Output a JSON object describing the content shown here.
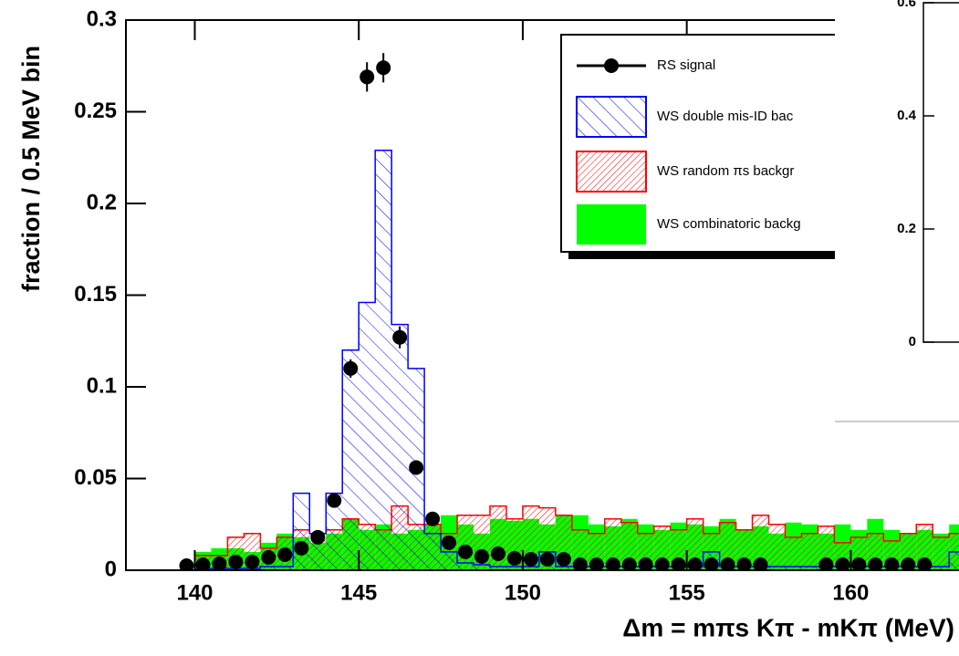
{
  "chart_data": [
    {
      "type": "histogram",
      "x_label": "Δm = mπs Kπ - mKπ (MeV)",
      "y_label": "fraction / 0.5 MeV bin",
      "xlim": [
        137.9,
        163.3
      ],
      "ylim": [
        0,
        0.3
      ],
      "xticks": [
        140,
        145,
        150,
        155,
        160
      ],
      "yticks": [
        0,
        0.05,
        0.1,
        0.15,
        0.2,
        0.25,
        0.3
      ],
      "bins": [
        138,
        138.5,
        139,
        139.5,
        140,
        140.5,
        141,
        141.5,
        142,
        142.5,
        143,
        143.5,
        144,
        144.5,
        145,
        145.5,
        146,
        146.5,
        147,
        147.5,
        148,
        148.5,
        149,
        149.5,
        150,
        150.5,
        151,
        151.5,
        152,
        152.5,
        153,
        153.5,
        154,
        154.5,
        155,
        155.5,
        156,
        156.5,
        157,
        157.5,
        158,
        158.5,
        159,
        159.5,
        160,
        160.5,
        161,
        161.5,
        162,
        162.5,
        163,
        163.5
      ],
      "series": [
        {
          "name": "RS signal",
          "style": "points",
          "color": "#000000",
          "x": [
            139.75,
            140.25,
            140.75,
            141.25,
            141.75,
            142.25,
            142.75,
            143.25,
            143.75,
            144.25,
            144.75,
            145.25,
            145.75,
            146.25,
            146.75,
            147.25,
            147.75,
            148.25,
            148.75,
            149.25,
            149.75,
            150.25,
            150.75,
            151.25,
            151.75,
            152.25,
            152.75,
            153.25,
            153.75,
            154.25,
            154.75,
            155.25,
            155.75,
            156.25,
            156.75,
            157.25,
            159.25,
            159.75,
            160.25,
            160.75,
            161.25,
            161.75,
            162.25
          ],
          "values": [
            0.0025,
            0.003,
            0.0035,
            0.0045,
            0.0045,
            0.007,
            0.0085,
            0.012,
            0.018,
            0.038,
            0.11,
            0.269,
            0.274,
            0.127,
            0.056,
            0.028,
            0.015,
            0.01,
            0.0075,
            0.009,
            0.0065,
            0.006,
            0.006,
            0.006,
            0.003,
            0.003,
            0.003,
            0.003,
            0.003,
            0.003,
            0.003,
            0.003,
            0.003,
            0.003,
            0.003,
            0.003,
            0.003,
            0.003,
            0.003,
            0.003,
            0.003,
            0.003,
            0.003
          ],
          "errors": [
            0.001,
            0.001,
            0.001,
            0.001,
            0.001,
            0.0015,
            0.0015,
            0.002,
            0.002,
            0.003,
            0.005,
            0.008,
            0.008,
            0.006,
            0.004,
            0.002,
            0.002,
            0.0015,
            0.0015,
            0.0015,
            0.001,
            0.001,
            0.001,
            0.001,
            0.001,
            0.001,
            0.001,
            0.001,
            0.001,
            0.001,
            0.001,
            0.001,
            0.001,
            0.001,
            0.001,
            0.001,
            0.001,
            0.001,
            0.001,
            0.001,
            0.001,
            0.001,
            0.001
          ]
        },
        {
          "name": "WS double mis-ID bac",
          "style": "hatch-blue",
          "color": "#0000ff",
          "values": [
            0,
            0,
            0,
            0,
            0.001,
            0.001,
            0.001,
            0.001,
            0.002,
            0.002,
            0.042,
            0.02,
            0.042,
            0.12,
            0.146,
            0.229,
            0.134,
            0.11,
            0.02,
            0.01,
            0.004,
            0.003,
            0.002,
            0.002,
            0.002,
            0.01,
            0.002,
            0.002,
            0.002,
            0.002,
            0.002,
            0.002,
            0.002,
            0.002,
            0.002,
            0.01,
            0.002,
            0.002,
            0.002,
            0.002,
            0.002,
            0.002,
            0.002,
            0.002,
            0.002,
            0.002,
            0.002,
            0.002,
            0.002,
            0.002,
            0.01
          ]
        },
        {
          "name": "WS random πs backgr",
          "style": "hatch-red",
          "color": "#ff0000",
          "values": [
            0,
            0,
            0,
            0,
            0.008,
            0.008,
            0.018,
            0.02,
            0.012,
            0.018,
            0.022,
            0.02,
            0.022,
            0.028,
            0.025,
            0.022,
            0.035,
            0.025,
            0.025,
            0.02,
            0.03,
            0.03,
            0.035,
            0.028,
            0.035,
            0.034,
            0.03,
            0.022,
            0.02,
            0.028,
            0.026,
            0.02,
            0.024,
            0.022,
            0.028,
            0.02,
            0.026,
            0.022,
            0.03,
            0.025,
            0.018,
            0.02,
            0.024,
            0.015,
            0.018,
            0.02,
            0.016,
            0.02,
            0.025,
            0.018,
            0.02
          ]
        },
        {
          "name": "WS combinatoric backg",
          "style": "fill",
          "color": "#00ff00",
          "values": [
            0,
            0,
            0,
            0,
            0.01,
            0.012,
            0.012,
            0.01,
            0.015,
            0.02,
            0.018,
            0.015,
            0.02,
            0.028,
            0.022,
            0.025,
            0.02,
            0.022,
            0.025,
            0.03,
            0.025,
            0.02,
            0.028,
            0.027,
            0.028,
            0.025,
            0.03,
            0.03,
            0.025,
            0.024,
            0.028,
            0.025,
            0.022,
            0.026,
            0.025,
            0.024,
            0.028,
            0.022,
            0.024,
            0.02,
            0.026,
            0.025,
            0.02,
            0.025,
            0.022,
            0.028,
            0.022,
            0.02,
            0.022,
            0.02,
            0.025
          ]
        }
      ]
    },
    {
      "type": "scatter",
      "ylim": [
        0,
        0.6
      ],
      "yticks": [
        0,
        0.2,
        0.4,
        0.6
      ]
    }
  ]
}
